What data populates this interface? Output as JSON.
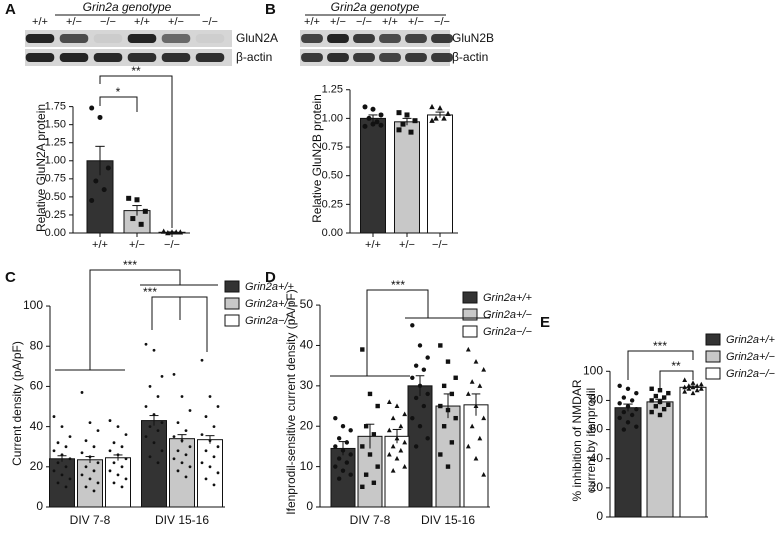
{
  "panels": [
    "A",
    "B",
    "C",
    "D",
    "E"
  ],
  "blots": [
    {
      "title": "Grin2a genotype",
      "lanes": [
        "+/+",
        "+/−",
        "−/−",
        "+/+",
        "+/−",
        "−/−"
      ],
      "bands": [
        "GluN2A",
        "β-actin"
      ]
    },
    {
      "title": "Grin2a genotype",
      "lanes": [
        "+/+",
        "+/−",
        "−/−",
        "+/+",
        "+/−",
        "−/−"
      ],
      "bands": [
        "GluN2B",
        "β-actin"
      ]
    }
  ],
  "chart_data": [
    {
      "type": "bar",
      "ylabel": "Relative GluN2A protein",
      "categories": [
        "+/+",
        "+/−",
        "−/−"
      ],
      "values": [
        1.0,
        0.31,
        0.01
      ],
      "errors": [
        0.2,
        0.07,
        0.005
      ],
      "colors": [
        "#333333",
        "#c8c8c8",
        "#ffffff"
      ],
      "markers": [
        "circle",
        "square",
        "triangle"
      ],
      "points": [
        [
          1.73,
          1.6,
          0.9,
          0.72,
          0.6,
          0.45
        ],
        [
          0.48,
          0.46,
          0.3,
          0.2,
          0.12
        ],
        [
          0.02,
          0.01,
          0.01,
          0.0,
          0.01
        ]
      ],
      "ylim": [
        0,
        1.8
      ],
      "yticks": [
        {
          "value": 0,
          "label": "0.00"
        },
        {
          "value": 0.25,
          "label": "0.25"
        },
        {
          "value": 0.5,
          "label": "0.50"
        },
        {
          "value": 0.75,
          "label": "0.75"
        },
        {
          "value": 1,
          "label": "1.00"
        },
        {
          "value": 1.25,
          "label": "1.25"
        },
        {
          "value": 1.5,
          "label": "1.50"
        },
        {
          "value": 1.75,
          "label": "1.75"
        }
      ],
      "annotations": [
        "*",
        "**"
      ]
    },
    {
      "type": "bar",
      "ylabel": "Relative GluN2B protein",
      "categories": [
        "+/+",
        "+/−",
        "−/−"
      ],
      "values": [
        1.0,
        0.97,
        1.03
      ],
      "errors": [
        0.03,
        0.03,
        0.025
      ],
      "colors": [
        "#333333",
        "#c8c8c8",
        "#ffffff"
      ],
      "markers": [
        "circle",
        "square",
        "triangle"
      ],
      "points": [
        [
          1.1,
          1.08,
          1.03,
          1.0,
          0.97,
          0.93,
          0.95,
          0.94
        ],
        [
          1.05,
          1.03,
          0.98,
          0.95,
          0.88,
          0.9
        ],
        [
          1.1,
          1.09,
          1.04,
          1.0,
          1.0,
          0.98
        ]
      ],
      "ylim": [
        0,
        1.3
      ],
      "yticks": [
        {
          "value": 0,
          "label": "0.00"
        },
        {
          "value": 0.25,
          "label": "0.25"
        },
        {
          "value": 0.5,
          "label": "0.50"
        },
        {
          "value": 0.75,
          "label": "0.75"
        },
        {
          "value": 1,
          "label": "1.00"
        },
        {
          "value": 1.25,
          "label": "1.25"
        }
      ],
      "annotations": []
    },
    {
      "type": "bar",
      "ylabel": "Current density (pA/pF)",
      "categories": [
        "DIV 7-8",
        "DIV 15-16"
      ],
      "series": [
        {
          "name": "Grin2a+/+",
          "color": "#333333",
          "marker": "circle",
          "values": [
            24,
            43
          ],
          "errors": [
            1.5,
            2.5
          ],
          "points": [
            [
              45,
              40,
              35,
              32,
              30,
              28,
              26,
              24,
              22,
              20,
              18,
              16,
              14,
              12,
              10
            ],
            [
              81,
              78,
              65,
              60,
              55,
              50,
              46,
              42,
              40,
              38,
              35,
              32,
              28,
              25,
              22
            ]
          ]
        },
        {
          "name": "Grin2a+/−",
          "color": "#c8c8c8",
          "marker": "circle",
          "values": [
            23.5,
            34
          ],
          "errors": [
            1.6,
            2
          ],
          "points": [
            [
              57,
              42,
              38,
              33,
              30,
              27,
              25,
              22,
              20,
              18,
              16,
              14,
              12,
              10,
              8
            ],
            [
              66,
              55,
              48,
              42,
              38,
              35,
              33,
              30,
              28,
              26,
              24,
              22,
              20,
              18,
              15
            ]
          ]
        },
        {
          "name": "Grin2a−/−",
          "color": "#ffffff",
          "marker": "circle",
          "values": [
            24.5,
            33.5
          ],
          "errors": [
            1.4,
            2
          ],
          "points": [
            [
              43,
              40,
              36,
              32,
              30,
              28,
              26,
              24,
              22,
              20,
              18,
              16,
              14,
              12,
              10
            ],
            [
              73,
              55,
              50,
              45,
              40,
              36,
              33,
              30,
              28,
              25,
              22,
              20,
              17,
              14,
              11
            ]
          ]
        }
      ],
      "ylim": [
        0,
        103
      ],
      "yticks": [
        0,
        20,
        40,
        60,
        80,
        100
      ],
      "annotations": [
        "***",
        "***"
      ]
    },
    {
      "type": "bar",
      "ylabel": "Ifenprodil-sensitive current density (pA/pF)",
      "categories": [
        "DIV 7-8",
        "DIV 15-16"
      ],
      "series": [
        {
          "name": "Grin2a+/+",
          "color": "#333333",
          "marker": "circle",
          "values": [
            14.5,
            30
          ],
          "errors": [
            1.7,
            2.5
          ],
          "points": [
            [
              22,
              20,
              19,
              17,
              16,
              15,
              14,
              13,
              12,
              11,
              10,
              9,
              8,
              7
            ],
            [
              45,
              40,
              37,
              35,
              34,
              32,
              30,
              28,
              27,
              25,
              22,
              20,
              17,
              15
            ]
          ]
        },
        {
          "name": "Grin2a+/−",
          "color": "#c8c8c8",
          "marker": "square",
          "values": [
            17.5,
            25
          ],
          "errors": [
            3,
            3
          ],
          "points": [
            [
              39,
              28,
              25,
              20,
              18,
              15,
              13,
              10,
              8,
              6,
              5
            ],
            [
              40,
              36,
              32,
              30,
              28,
              25,
              24,
              22,
              20,
              16,
              13,
              10
            ]
          ]
        },
        {
          "name": "Grin2a−/−",
          "color": "#ffffff",
          "marker": "triangle",
          "values": [
            17.5,
            25.3
          ],
          "errors": [
            1.7,
            2.7
          ],
          "points": [
            [
              26,
              25,
              23,
              22,
              20,
              19,
              17,
              16,
              15,
              14,
              13,
              12,
              10,
              9
            ],
            [
              39,
              36,
              34,
              31,
              30,
              28,
              25,
              22,
              20,
              17,
              15,
              12,
              8
            ]
          ]
        }
      ],
      "ylim": [
        0,
        52
      ],
      "yticks": [
        0,
        10,
        20,
        30,
        40,
        50
      ],
      "annotations": [
        "***"
      ]
    },
    {
      "type": "bar",
      "ylabel": [
        "% inhibition of NMDAR",
        "current by ifenprodil"
      ],
      "categories": [
        null
      ],
      "series": [
        {
          "name": "Grin2a+/+",
          "color": "#333333",
          "marker": "circle",
          "values": [
            75
          ],
          "errors": [
            2.5
          ],
          "points": [
            [
              90,
              88,
              85,
              82,
              80,
              78,
              76,
              74,
              72,
              70,
              68,
              65,
              62,
              60
            ]
          ]
        },
        {
          "name": "Grin2a+/−",
          "color": "#c8c8c8",
          "marker": "square",
          "values": [
            79
          ],
          "errors": [
            1.8
          ],
          "points": [
            [
              88,
              87,
              85,
              83,
              82,
              80,
              79,
              77,
              76,
              74,
              72,
              70
            ]
          ]
        },
        {
          "name": "Grin2a−/−",
          "color": "#ffffff",
          "marker": "triangle",
          "values": [
            89
          ],
          "errors": [
            0.8
          ],
          "points": [
            [
              94,
              92,
              91,
              90,
              90,
              89,
              89,
              88,
              88,
              87,
              86,
              85
            ]
          ]
        }
      ],
      "ylim": [
        0,
        105
      ],
      "yticks": [
        0,
        20,
        40,
        60,
        80,
        100
      ],
      "annotations": [
        "***",
        "**"
      ]
    }
  ]
}
